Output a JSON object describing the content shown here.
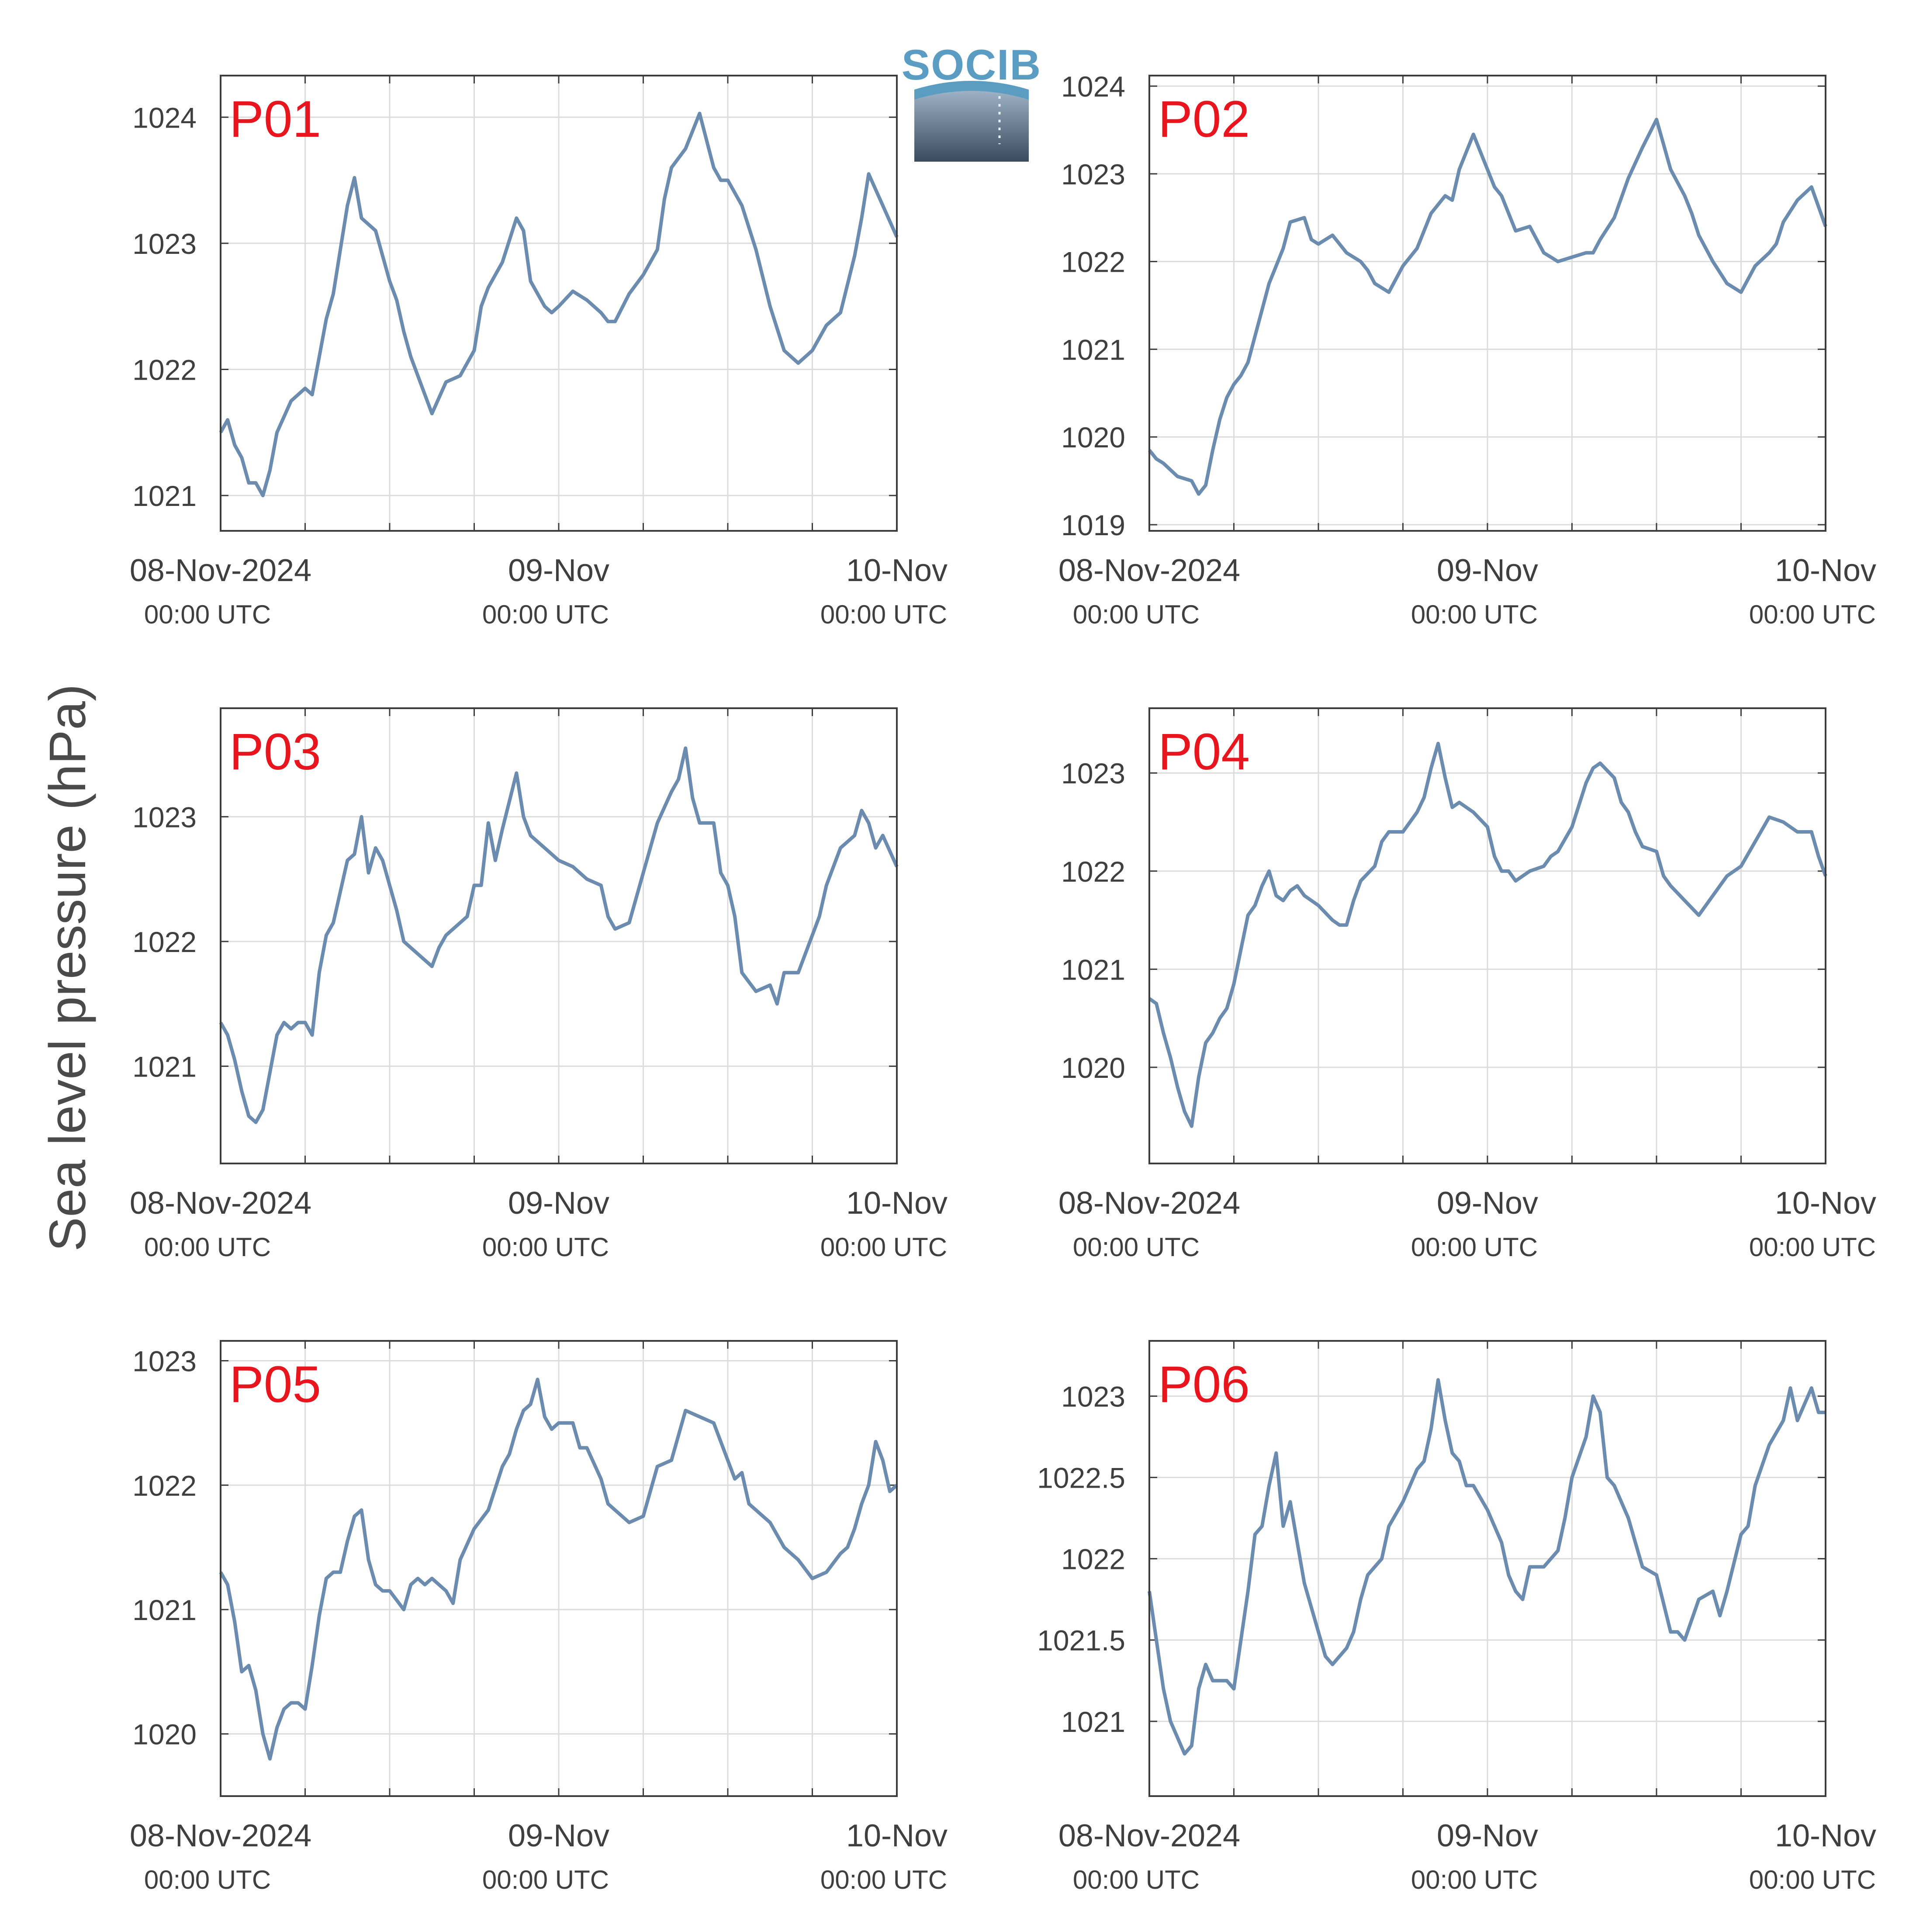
{
  "ylabel": "Sea level pressure (hPa)",
  "logo": {
    "text": "SOCIB"
  },
  "colors": {
    "line": "#6b8caf",
    "label": "#e8141e",
    "grid": "#dcdcdc",
    "axis": "#3c3c3c"
  },
  "x_ticks": [
    {
      "label": "08-Nov-2024",
      "sub": "00:00 UTC"
    },
    {
      "label": "09-Nov",
      "sub": "00:00 UTC"
    },
    {
      "label": "10-Nov",
      "sub": "00:00 UTC"
    }
  ],
  "chart_data": [
    {
      "type": "line",
      "panel_label": "P01",
      "x_unit": "hours since 08-Nov-2024 00:00 UTC",
      "xlim": [
        0,
        48
      ],
      "ylim": [
        1020.72,
        1024.33
      ],
      "yticks": [
        1021,
        1022,
        1023,
        1024
      ],
      "ytick_labels": [
        "1021",
        "1022",
        "1023",
        "1024"
      ],
      "series": [
        {
          "x": [
            0,
            0.5,
            1,
            1.5,
            2,
            2.5,
            3,
            3.5,
            4,
            5,
            6,
            6.5,
            7,
            7.5,
            8,
            8.5,
            9,
            9.5,
            10,
            11,
            12,
            12.5,
            13,
            13.5,
            14,
            15,
            16,
            17,
            18,
            18.5,
            19,
            20,
            21,
            21.5,
            22,
            23,
            23.5,
            24,
            25,
            26,
            27,
            27.5,
            28,
            29,
            30,
            31,
            31.5,
            32,
            33,
            34,
            35,
            35.5,
            36,
            37,
            38,
            39,
            40,
            40.5,
            41,
            42,
            43,
            44,
            45,
            45.5,
            46,
            47,
            48
          ],
          "values": [
            1021.5,
            1021.6,
            1021.4,
            1021.3,
            1021.1,
            1021.1,
            1021.0,
            1021.2,
            1021.5,
            1021.75,
            1021.85,
            1021.8,
            1022.1,
            1022.4,
            1022.6,
            1022.95,
            1023.3,
            1023.52,
            1023.2,
            1023.1,
            1022.7,
            1022.55,
            1022.3,
            1022.1,
            1021.95,
            1021.65,
            1021.9,
            1021.95,
            1022.15,
            1022.5,
            1022.65,
            1022.85,
            1023.2,
            1023.1,
            1022.7,
            1022.5,
            1022.45,
            1022.5,
            1022.62,
            1022.55,
            1022.45,
            1022.38,
            1022.38,
            1022.6,
            1022.75,
            1022.95,
            1023.35,
            1023.6,
            1023.75,
            1024.03,
            1023.6,
            1023.5,
            1023.5,
            1023.3,
            1022.95,
            1022.5,
            1022.15,
            1022.1,
            1022.05,
            1022.15,
            1022.35,
            1022.45,
            1022.9,
            1023.2,
            1023.55,
            1023.3,
            1023.05
          ]
        }
      ]
    },
    {
      "type": "line",
      "panel_label": "P02",
      "x_unit": "hours since 08-Nov-2024 00:00 UTC",
      "xlim": [
        0,
        48
      ],
      "ylim": [
        1018.93,
        1024.12
      ],
      "yticks": [
        1019,
        1020,
        1021,
        1022,
        1023,
        1024
      ],
      "ytick_labels": [
        "1019",
        "1020",
        "1021",
        "1022",
        "1023",
        "1024"
      ],
      "series": [
        {
          "x": [
            0,
            0.5,
            1,
            2,
            3,
            3.5,
            4,
            4.5,
            5,
            5.5,
            6,
            6.5,
            7,
            8,
            8.5,
            9,
            9.5,
            10,
            11,
            11.5,
            12,
            13,
            14,
            14.5,
            15,
            15.5,
            16,
            17,
            18,
            19,
            19.5,
            20,
            21,
            21.5,
            22,
            22.5,
            23,
            24,
            24.5,
            25,
            26,
            27,
            28,
            29,
            30,
            31,
            31.5,
            32,
            33,
            34,
            35,
            36,
            37,
            38,
            38.5,
            39,
            40,
            41,
            42,
            43,
            44,
            44.5,
            45,
            46,
            47,
            48
          ],
          "values": [
            1019.85,
            1019.75,
            1019.7,
            1019.55,
            1019.5,
            1019.35,
            1019.45,
            1019.85,
            1020.2,
            1020.45,
            1020.6,
            1020.7,
            1020.85,
            1021.45,
            1021.75,
            1021.95,
            1022.15,
            1022.45,
            1022.5,
            1022.25,
            1022.2,
            1022.3,
            1022.1,
            1022.05,
            1022.0,
            1021.9,
            1021.75,
            1021.65,
            1021.95,
            1022.15,
            1022.35,
            1022.55,
            1022.75,
            1022.7,
            1023.05,
            1023.25,
            1023.45,
            1023.05,
            1022.85,
            1022.75,
            1022.35,
            1022.4,
            1022.1,
            1022.0,
            1022.05,
            1022.1,
            1022.1,
            1022.25,
            1022.5,
            1022.95,
            1023.3,
            1023.62,
            1023.05,
            1022.75,
            1022.55,
            1022.3,
            1022.0,
            1021.75,
            1021.65,
            1021.95,
            1022.1,
            1022.2,
            1022.45,
            1022.7,
            1022.85,
            1022.4
          ]
        }
      ]
    },
    {
      "type": "line",
      "panel_label": "P03",
      "x_unit": "hours since 08-Nov-2024 00:00 UTC",
      "xlim": [
        0,
        48
      ],
      "ylim": [
        1020.22,
        1023.87
      ],
      "yticks": [
        1021,
        1022,
        1023
      ],
      "ytick_labels": [
        "1021",
        "1022",
        "1023"
      ],
      "series": [
        {
          "x": [
            0,
            0.5,
            1,
            1.5,
            2,
            2.5,
            3,
            3.5,
            4,
            4.5,
            5,
            5.5,
            6,
            6.5,
            7,
            7.5,
            8,
            8.5,
            9,
            9.5,
            10,
            10.5,
            11,
            11.5,
            12,
            12.5,
            13,
            13.5,
            14,
            15,
            15.5,
            16,
            17,
            17.5,
            18,
            18.5,
            19,
            19.5,
            20,
            21,
            21.5,
            22,
            23,
            24,
            25,
            26,
            27,
            27.5,
            28,
            29,
            29.5,
            30,
            31,
            32,
            32.5,
            33,
            33.5,
            34,
            35,
            35.5,
            36,
            36.5,
            37,
            38,
            39,
            39.5,
            40,
            41,
            42,
            42.5,
            43,
            44,
            45,
            45.5,
            46,
            46.5,
            47,
            48
          ],
          "values": [
            1021.35,
            1021.25,
            1021.05,
            1020.8,
            1020.6,
            1020.55,
            1020.65,
            1020.95,
            1021.25,
            1021.35,
            1021.3,
            1021.35,
            1021.35,
            1021.25,
            1021.75,
            1022.05,
            1022.15,
            1022.4,
            1022.65,
            1022.7,
            1023.0,
            1022.55,
            1022.75,
            1022.65,
            1022.45,
            1022.25,
            1022.0,
            1021.95,
            1021.9,
            1021.8,
            1021.95,
            1022.05,
            1022.15,
            1022.2,
            1022.45,
            1022.45,
            1022.95,
            1022.65,
            1022.9,
            1023.35,
            1023.0,
            1022.85,
            1022.75,
            1022.65,
            1022.6,
            1022.5,
            1022.45,
            1022.2,
            1022.1,
            1022.15,
            1022.35,
            1022.55,
            1022.95,
            1023.2,
            1023.3,
            1023.55,
            1023.15,
            1022.95,
            1022.95,
            1022.55,
            1022.45,
            1022.2,
            1021.75,
            1021.6,
            1021.65,
            1021.5,
            1021.75,
            1021.75,
            1022.05,
            1022.2,
            1022.45,
            1022.75,
            1022.85,
            1023.05,
            1022.95,
            1022.75,
            1022.85,
            1022.6
          ]
        }
      ]
    },
    {
      "type": "line",
      "panel_label": "P04",
      "x_unit": "hours since 08-Nov-2024 00:00 UTC",
      "xlim": [
        0,
        48
      ],
      "ylim": [
        1019.02,
        1023.66
      ],
      "yticks": [
        1020,
        1021,
        1022,
        1023
      ],
      "ytick_labels": [
        "1020",
        "1021",
        "1022",
        "1023"
      ],
      "series": [
        {
          "x": [
            0,
            0.5,
            1,
            1.5,
            2,
            2.5,
            3,
            3.5,
            4,
            4.5,
            5,
            5.5,
            6,
            6.5,
            7,
            7.5,
            8,
            8.5,
            9,
            9.5,
            10,
            10.5,
            11,
            12,
            13,
            13.5,
            14,
            14.5,
            15,
            16,
            16.5,
            17,
            18,
            19,
            19.5,
            20,
            20.5,
            21,
            21.5,
            22,
            23,
            24,
            24.5,
            25,
            25.5,
            26,
            27,
            28,
            28.5,
            29,
            30,
            31,
            31.5,
            32,
            33,
            33.5,
            34,
            34.5,
            35,
            36,
            36.5,
            37,
            38,
            39,
            40,
            41,
            42,
            43,
            44,
            45,
            46,
            47,
            47.5,
            48
          ],
          "values": [
            1020.7,
            1020.65,
            1020.35,
            1020.1,
            1019.8,
            1019.55,
            1019.4,
            1019.9,
            1020.25,
            1020.35,
            1020.5,
            1020.6,
            1020.85,
            1021.2,
            1021.55,
            1021.65,
            1021.85,
            1022.0,
            1021.75,
            1021.7,
            1021.8,
            1021.85,
            1021.75,
            1021.65,
            1021.5,
            1021.45,
            1021.45,
            1021.7,
            1021.9,
            1022.05,
            1022.3,
            1022.4,
            1022.4,
            1022.6,
            1022.75,
            1023.05,
            1023.3,
            1022.95,
            1022.65,
            1022.7,
            1022.6,
            1022.45,
            1022.15,
            1022.0,
            1022.0,
            1021.9,
            1022.0,
            1022.05,
            1022.15,
            1022.2,
            1022.45,
            1022.9,
            1023.05,
            1023.1,
            1022.95,
            1022.7,
            1022.6,
            1022.4,
            1022.25,
            1022.2,
            1021.95,
            1021.85,
            1021.7,
            1021.55,
            1021.75,
            1021.95,
            1022.05,
            1022.3,
            1022.55,
            1022.5,
            1022.4,
            1022.4,
            1022.15,
            1021.95
          ]
        }
      ]
    },
    {
      "type": "line",
      "panel_label": "P05",
      "x_unit": "hours since 08-Nov-2024 00:00 UTC",
      "xlim": [
        0,
        48
      ],
      "ylim": [
        1019.5,
        1023.16
      ],
      "yticks": [
        1020,
        1021,
        1022,
        1023
      ],
      "ytick_labels": [
        "1020",
        "1021",
        "1022",
        "1023"
      ],
      "series": [
        {
          "x": [
            0,
            0.5,
            1,
            1.5,
            2,
            2.5,
            3,
            3.5,
            4,
            4.5,
            5,
            5.5,
            6,
            6.5,
            7,
            7.5,
            8,
            8.5,
            9,
            9.5,
            10,
            10.5,
            11,
            11.5,
            12,
            13,
            13.5,
            14,
            14.5,
            15,
            15.5,
            16,
            16.5,
            17,
            18,
            19,
            20,
            20.5,
            21,
            21.5,
            22,
            22.5,
            23,
            23.5,
            24,
            25,
            25.5,
            26,
            27,
            27.5,
            28,
            29,
            30,
            30.5,
            31,
            32,
            33,
            34,
            35,
            36,
            36.5,
            37,
            37.5,
            38,
            39,
            40,
            41,
            42,
            43,
            44,
            44.5,
            45,
            45.5,
            46,
            46.5,
            47,
            47.5,
            48
          ],
          "values": [
            1021.3,
            1021.2,
            1020.9,
            1020.5,
            1020.55,
            1020.35,
            1020.0,
            1019.8,
            1020.05,
            1020.2,
            1020.25,
            1020.25,
            1020.2,
            1020.55,
            1020.95,
            1021.25,
            1021.3,
            1021.3,
            1021.55,
            1021.75,
            1021.8,
            1021.4,
            1021.2,
            1021.15,
            1021.15,
            1021.0,
            1021.2,
            1021.25,
            1021.2,
            1021.25,
            1021.2,
            1021.15,
            1021.05,
            1021.4,
            1021.65,
            1021.8,
            1022.15,
            1022.25,
            1022.45,
            1022.6,
            1022.65,
            1022.85,
            1022.55,
            1022.45,
            1022.5,
            1022.5,
            1022.3,
            1022.3,
            1022.05,
            1021.85,
            1021.8,
            1021.7,
            1021.75,
            1021.95,
            1022.15,
            1022.2,
            1022.6,
            1022.55,
            1022.5,
            1022.2,
            1022.05,
            1022.1,
            1021.85,
            1021.8,
            1021.7,
            1021.5,
            1021.4,
            1021.25,
            1021.3,
            1021.45,
            1021.5,
            1021.65,
            1021.85,
            1022.0,
            1022.35,
            1022.2,
            1021.95,
            1022.0
          ]
        }
      ]
    },
    {
      "type": "line",
      "panel_label": "P06",
      "x_unit": "hours since 08-Nov-2024 00:00 UTC",
      "xlim": [
        0,
        48
      ],
      "ylim": [
        1020.54,
        1023.34
      ],
      "yticks": [
        1021,
        1021.5,
        1022,
        1022.5,
        1023
      ],
      "ytick_labels": [
        "1021",
        "1021.5",
        "1022",
        "1022.5",
        "1023"
      ],
      "series": [
        {
          "x": [
            0,
            0.5,
            1,
            1.5,
            2,
            2.5,
            3,
            3.5,
            4,
            4.5,
            5,
            5.5,
            6,
            6.5,
            7,
            7.5,
            8,
            8.5,
            9,
            9.5,
            10,
            10.5,
            11,
            11.5,
            12,
            12.5,
            13,
            14,
            14.5,
            15,
            15.5,
            16,
            16.5,
            17,
            18,
            19,
            19.5,
            20,
            20.5,
            21,
            21.5,
            22,
            22.5,
            23,
            24,
            25,
            25.5,
            26,
            26.5,
            27,
            28,
            29,
            29.5,
            30,
            31,
            31.5,
            32,
            32.5,
            33,
            34,
            34.5,
            35,
            36,
            37,
            37.5,
            38,
            39,
            40,
            40.5,
            41,
            42,
            42.5,
            43,
            44,
            45,
            45.5,
            46,
            46.5,
            47,
            47.5,
            48
          ],
          "values": [
            1021.8,
            1021.5,
            1021.2,
            1021.0,
            1020.9,
            1020.8,
            1020.85,
            1021.2,
            1021.35,
            1021.25,
            1021.25,
            1021.25,
            1021.2,
            1021.5,
            1021.8,
            1022.15,
            1022.2,
            1022.45,
            1022.65,
            1022.2,
            1022.35,
            1022.1,
            1021.85,
            1021.7,
            1021.55,
            1021.4,
            1021.35,
            1021.45,
            1021.55,
            1021.75,
            1021.9,
            1021.95,
            1022.0,
            1022.2,
            1022.35,
            1022.55,
            1022.6,
            1022.8,
            1023.1,
            1022.85,
            1022.65,
            1022.6,
            1022.45,
            1022.45,
            1022.3,
            1022.1,
            1021.9,
            1021.8,
            1021.75,
            1021.95,
            1021.95,
            1022.05,
            1022.25,
            1022.5,
            1022.75,
            1023.0,
            1022.9,
            1022.5,
            1022.45,
            1022.25,
            1022.1,
            1021.95,
            1021.9,
            1021.55,
            1021.55,
            1021.5,
            1021.75,
            1021.8,
            1021.65,
            1021.8,
            1022.15,
            1022.2,
            1022.45,
            1022.7,
            1022.85,
            1023.05,
            1022.85,
            1022.95,
            1023.05,
            1022.9,
            1022.9
          ]
        }
      ]
    }
  ]
}
